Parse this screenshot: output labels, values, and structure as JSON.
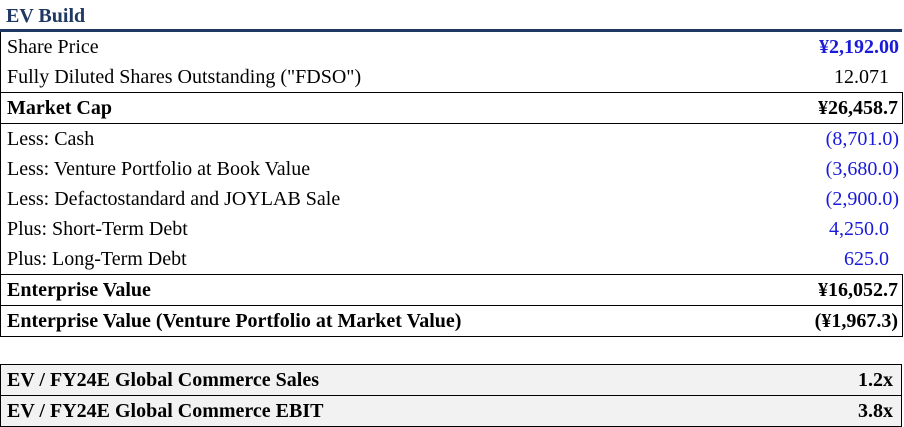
{
  "title": "EV Build",
  "rows": [
    {
      "label": "Share Price",
      "value": "¥2,192.00"
    },
    {
      "label": "Fully Diluted Shares Outstanding (\"FDSO\")",
      "value": "12.071"
    },
    {
      "label": "Market Cap",
      "value": "¥26,458.7"
    },
    {
      "label": "Less: Cash",
      "value": "(8,701.0)"
    },
    {
      "label": "Less: Venture Portfolio at Book Value",
      "value": "(3,680.0)"
    },
    {
      "label": "Less: Defactostandard and JOYLAB Sale",
      "value": "(2,900.0)"
    },
    {
      "label": "Plus: Short-Term Debt",
      "value": "4,250.0"
    },
    {
      "label": "Plus: Long-Term Debt",
      "value": "625.0"
    },
    {
      "label": "Enterprise Value",
      "value": "¥16,052.7"
    },
    {
      "label": "Enterprise Value (Venture Portfolio at Market Value)",
      "value": "(¥1,967.3)"
    }
  ],
  "multiples": [
    {
      "label": "EV / FY24E Global Commerce Sales",
      "value": "1.2x"
    },
    {
      "label": "EV / FY24E Global Commerce EBIT",
      "value": "3.8x"
    }
  ],
  "colors": {
    "title": "#1f3864",
    "input_blue": "#1a1adb",
    "multiples_bg": "#f2f2f2"
  }
}
